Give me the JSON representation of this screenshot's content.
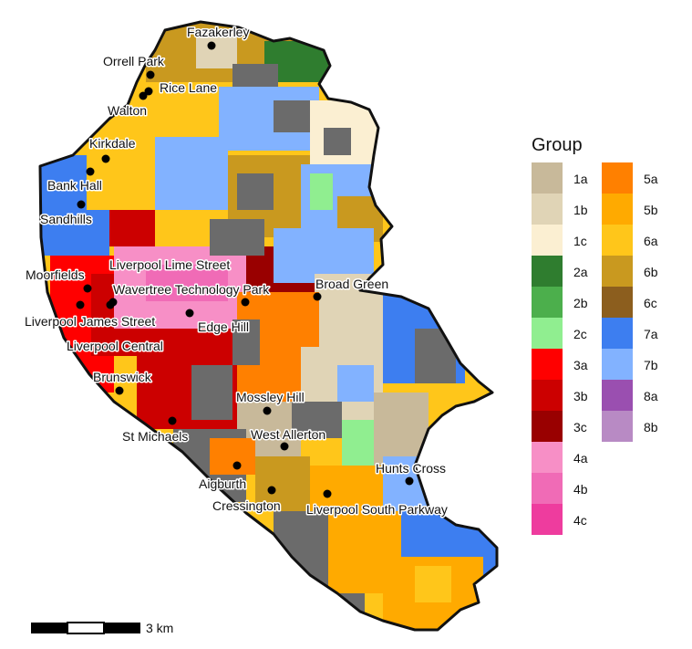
{
  "legend": {
    "title": "Group",
    "items": [
      {
        "code": "1a",
        "color": "#c8b99a"
      },
      {
        "code": "1b",
        "color": "#e0d4b6"
      },
      {
        "code": "1c",
        "color": "#fbefd2"
      },
      {
        "code": "2a",
        "color": "#2f7d2f"
      },
      {
        "code": "2b",
        "color": "#4caf4c"
      },
      {
        "code": "2c",
        "color": "#90ee90"
      },
      {
        "code": "3a",
        "color": "#ff0000"
      },
      {
        "code": "3b",
        "color": "#cc0000"
      },
      {
        "code": "3c",
        "color": "#990000"
      },
      {
        "code": "4a",
        "color": "#f78fc6"
      },
      {
        "code": "4b",
        "color": "#f06bb6"
      },
      {
        "code": "4c",
        "color": "#ee3c9e"
      },
      {
        "code": "5a",
        "color": "#ff8000"
      },
      {
        "code": "5b",
        "color": "#ffaa00"
      },
      {
        "code": "6a",
        "color": "#ffc61a"
      },
      {
        "code": "6b",
        "color": "#c9991f"
      },
      {
        "code": "6c",
        "color": "#8c5e1e"
      },
      {
        "code": "7a",
        "color": "#3d7ef0"
      },
      {
        "code": "7b",
        "color": "#82b2ff"
      },
      {
        "code": "8a",
        "color": "#9a4fb0"
      },
      {
        "code": "8b",
        "color": "#b88ac4"
      }
    ]
  },
  "stations": [
    {
      "name": "Fazakerley"
    },
    {
      "name": "Orrell Park"
    },
    {
      "name": "Rice Lane"
    },
    {
      "name": "Walton"
    },
    {
      "name": "Kirkdale"
    },
    {
      "name": "Bank Hall"
    },
    {
      "name": "Sandhills"
    },
    {
      "name": "Moorfields"
    },
    {
      "name": "Liverpool Lime Street"
    },
    {
      "name": "Wavertree Technology Park"
    },
    {
      "name": "Broad Green"
    },
    {
      "name": "Liverpool James Street"
    },
    {
      "name": "Edge Hill"
    },
    {
      "name": "Liverpool Central"
    },
    {
      "name": "Brunswick"
    },
    {
      "name": "Mossley Hill"
    },
    {
      "name": "St Michaels"
    },
    {
      "name": "West Allerton"
    },
    {
      "name": "Hunts Cross"
    },
    {
      "name": "Aigburth"
    },
    {
      "name": "Cressington"
    },
    {
      "name": "Liverpool South Parkway"
    }
  ],
  "scale_bar": {
    "label": "3 km"
  },
  "colors": {
    "boundary": "#111111",
    "roads_gray": "#6b6b6b"
  }
}
